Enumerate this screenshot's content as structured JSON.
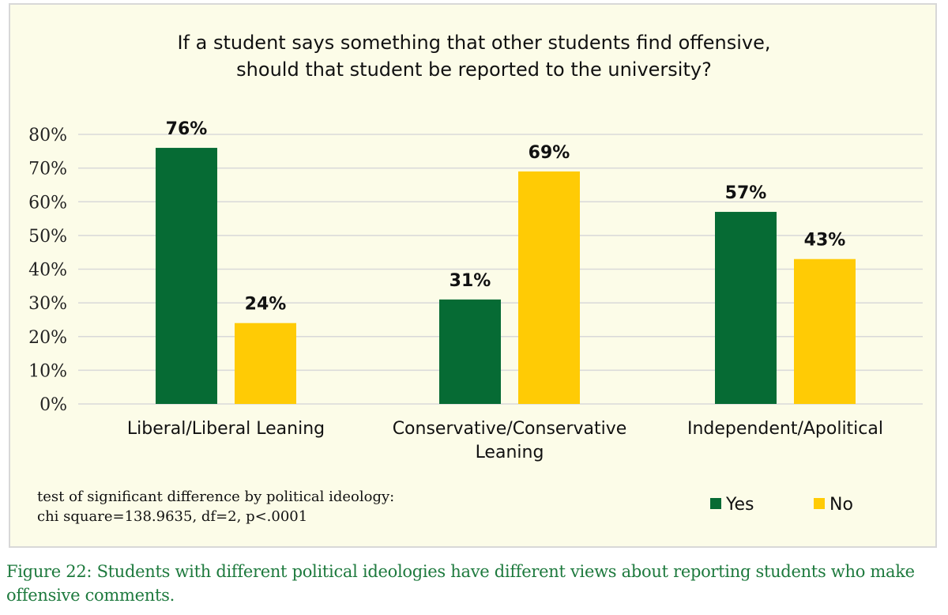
{
  "chart_data": {
    "type": "bar",
    "title": [
      "If a student says something that other students find offensive,",
      "should that student be reported to the university?"
    ],
    "categories": [
      [
        "Liberal/Liberal Leaning"
      ],
      [
        "Conservative/Conservative",
        "Leaning"
      ],
      [
        "Independent/Apolitical"
      ]
    ],
    "series": [
      {
        "name": "Yes",
        "color": "#066b34",
        "values": [
          76,
          31,
          57
        ]
      },
      {
        "name": "No",
        "color": "#ffcb05",
        "values": [
          24,
          69,
          43
        ]
      }
    ],
    "data_labels": [
      [
        "76%",
        "31%",
        "57%"
      ],
      [
        "24%",
        "69%",
        "43%"
      ]
    ],
    "yticks": [
      0,
      10,
      20,
      30,
      40,
      50,
      60,
      70,
      80
    ],
    "ytick_labels": [
      "0%",
      "10%",
      "20%",
      "30%",
      "40%",
      "50%",
      "60%",
      "70%",
      "80%"
    ],
    "ylim": [
      0,
      80
    ],
    "grid": true,
    "legend_position": "bottom-right",
    "note": [
      "test of significant difference by political ideology:",
      "chi square=138.9635, df=2, p<.0001"
    ]
  },
  "caption": "Figure 22: Students with different political ideologies have different views about reporting students who make offensive comments.",
  "colors": {
    "frame_bg": "#fcfce8",
    "grid": "#d9d9d9",
    "caption": "#1e7a3e"
  }
}
